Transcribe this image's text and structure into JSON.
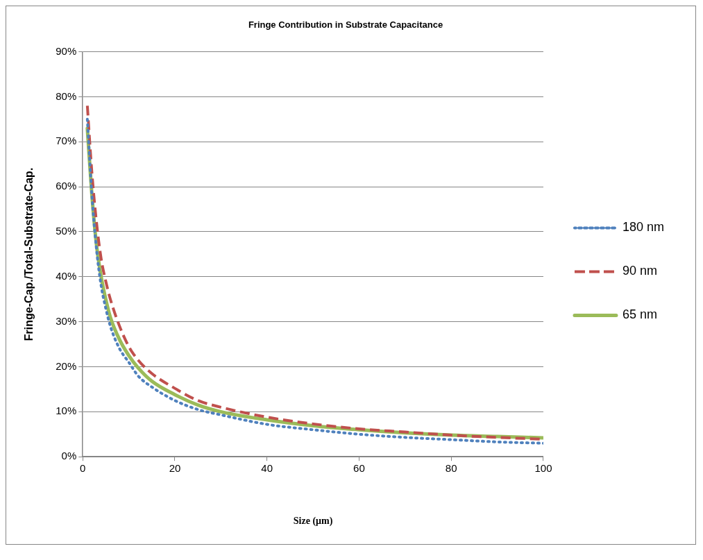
{
  "chart_data": {
    "type": "line",
    "title": "Fringe Contribution in Substrate Capacitance",
    "xlabel": "Size (μm)",
    "ylabel": "Fringe-Cap./Total-Substrate-Cap.",
    "x": [
      1,
      2,
      3,
      4,
      5,
      6,
      8,
      10,
      12,
      15,
      20,
      25,
      30,
      40,
      50,
      60,
      70,
      80,
      90,
      100
    ],
    "series": [
      {
        "name": "180 nm",
        "color": "#4f81bd",
        "line_style": "dotted",
        "values": [
          75,
          58,
          46,
          38,
          33,
          29,
          24,
          21,
          18,
          15.5,
          12.5,
          10.5,
          9.3,
          7.2,
          6,
          5,
          4.3,
          3.8,
          3.3,
          3
        ]
      },
      {
        "name": "90 nm",
        "color": "#c0504d",
        "line_style": "dashed",
        "values": [
          78,
          63,
          52,
          44,
          39,
          35,
          29,
          24.5,
          21.5,
          18.5,
          15.2,
          12.5,
          11,
          8.8,
          7.3,
          6.2,
          5.5,
          4.8,
          4.3,
          3.9
        ]
      },
      {
        "name": "65 nm",
        "color": "#9bbb59",
        "line_style": "solid",
        "values": [
          73,
          58,
          47,
          40,
          35,
          31,
          26,
          22.5,
          19.8,
          16.8,
          13.8,
          11.5,
          10,
          8.2,
          6.9,
          6,
          5.3,
          4.8,
          4.5,
          4.2
        ]
      }
    ],
    "xlim": [
      0,
      100
    ],
    "xticks": [
      0,
      20,
      40,
      60,
      80,
      100
    ],
    "ylim": [
      0,
      90
    ],
    "yticks": [
      {
        "value": 0,
        "label": "0%"
      },
      {
        "value": 10,
        "label": "10%"
      },
      {
        "value": 20,
        "label": "20%"
      },
      {
        "value": 30,
        "label": "30%"
      },
      {
        "value": 40,
        "label": "40%"
      },
      {
        "value": 50,
        "label": "50%"
      },
      {
        "value": 60,
        "label": "60%"
      },
      {
        "value": 70,
        "label": "70%"
      },
      {
        "value": 80,
        "label": "80%"
      },
      {
        "value": 90,
        "label": "90%"
      }
    ],
    "grid": "y",
    "legend": "right",
    "marker": "none"
  }
}
